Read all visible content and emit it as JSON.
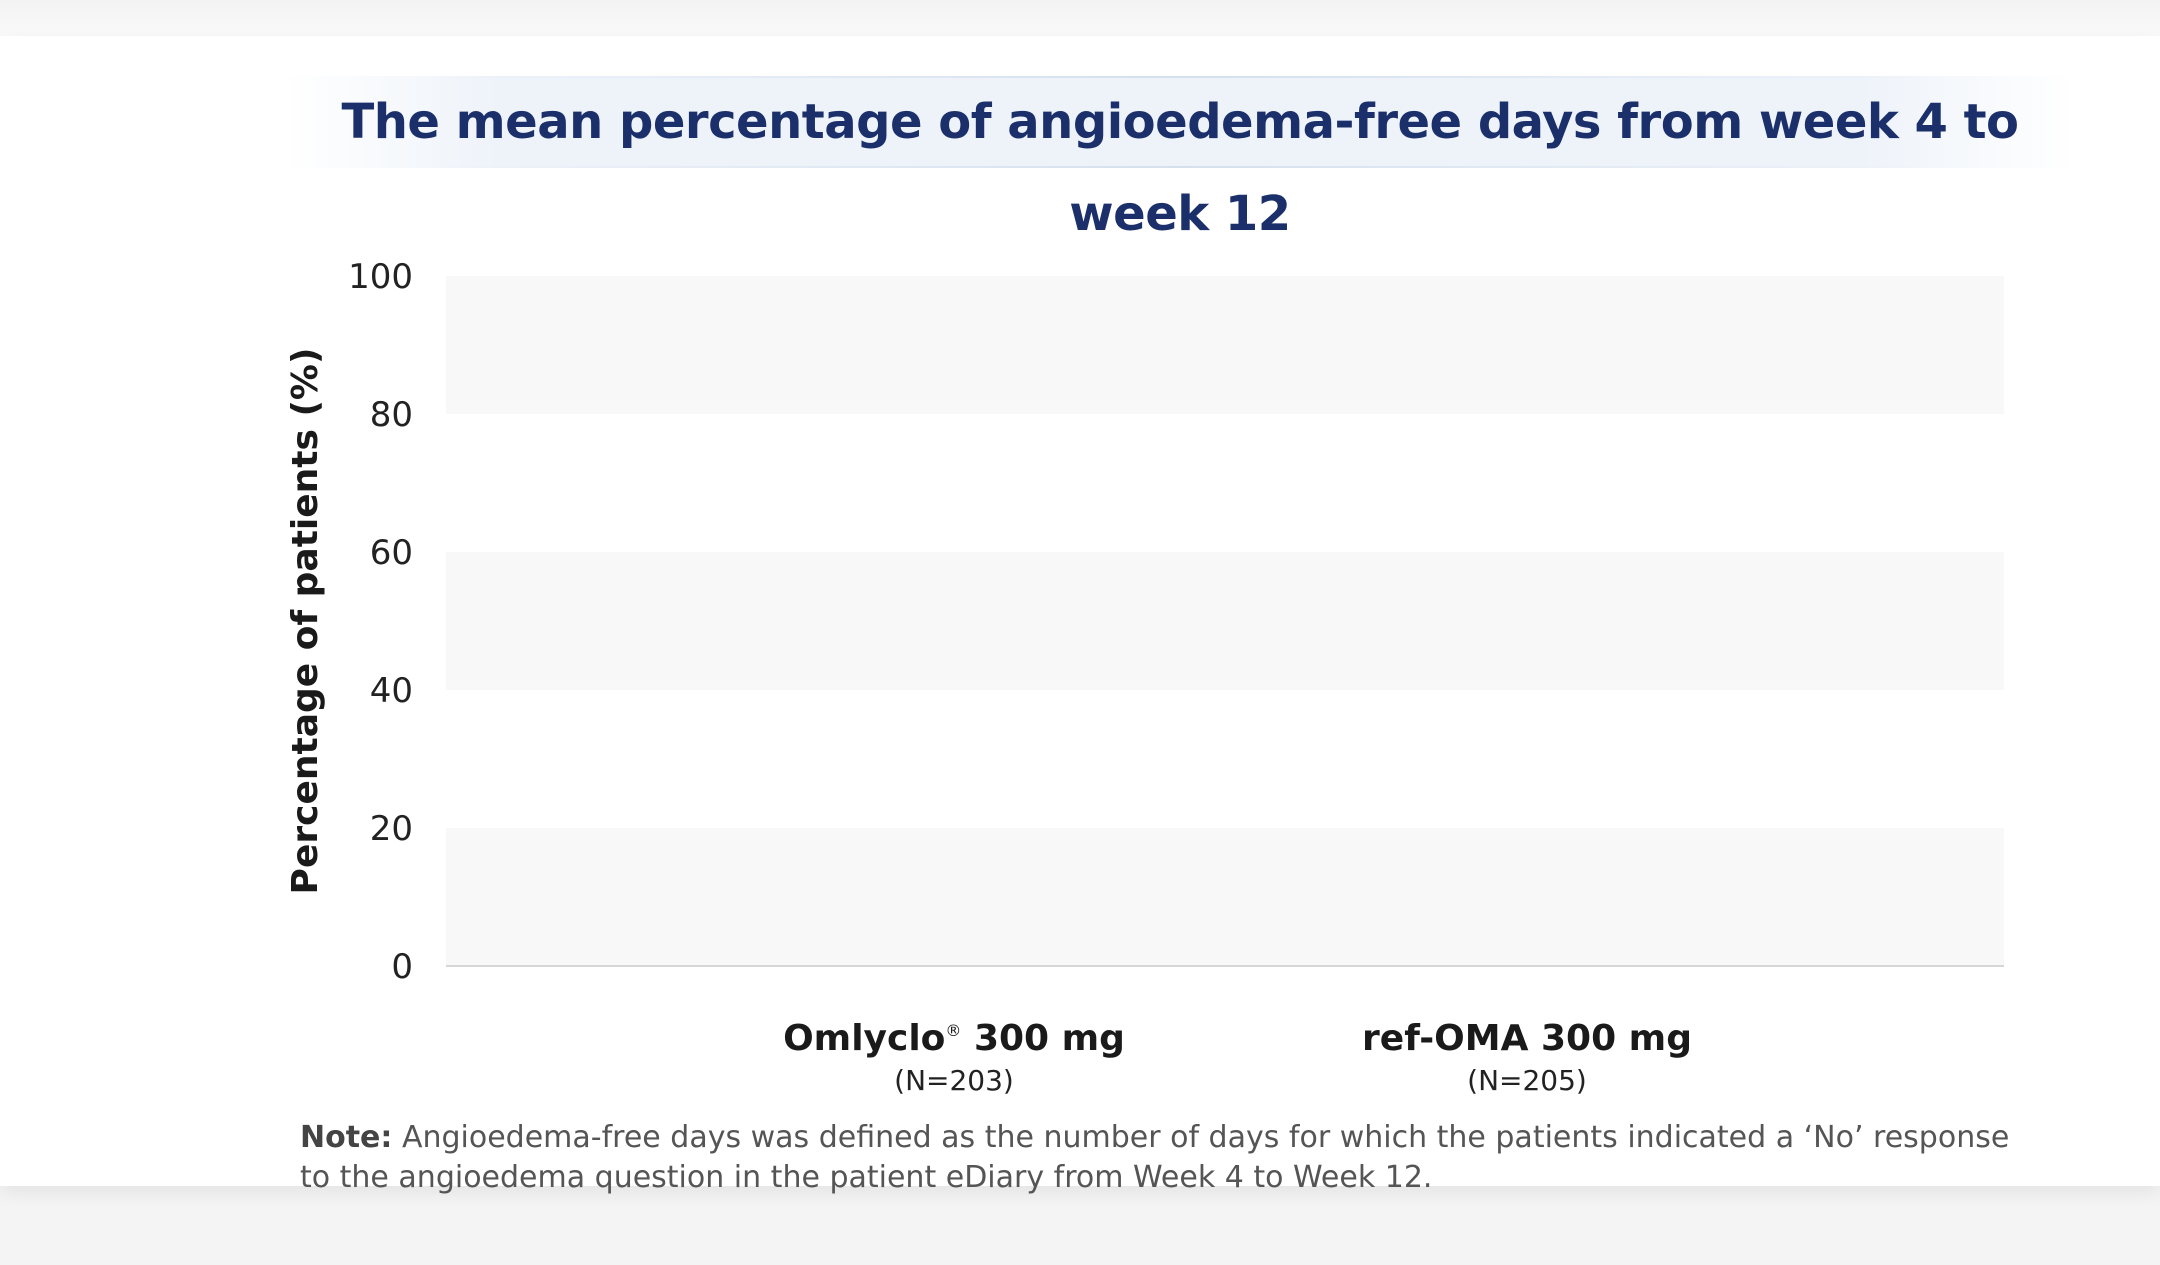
{
  "chart_data": {
    "type": "bar",
    "title": "The mean percentage of angioedema-free days from week 4 to week 12",
    "ylabel": "Percentage of patients (%)",
    "xlabel": "",
    "ylim": [
      0,
      100
    ],
    "yticks": [
      0,
      20,
      40,
      60,
      80,
      100
    ],
    "grid": "alternating bands",
    "categories": [
      {
        "name": "Omlyclo",
        "mark": "®",
        "dose": " 300 mg",
        "n": "(N=203)"
      },
      {
        "name": "ref-OMA",
        "mark": "",
        "dose": " 300 mg",
        "n": "(N=205)"
      }
    ],
    "values": [
      null,
      null
    ]
  },
  "note": {
    "label": "Note:",
    "text": " Angioedema-free days was defined as the number of days for which the patients indicated a ‘No’ response to the angioedema question in the patient eDiary from Week 4 to Week 12."
  },
  "colors": {
    "title": "#1b2f6b",
    "band": "#f8f8f8",
    "baseline": "#d6d6d6"
  }
}
